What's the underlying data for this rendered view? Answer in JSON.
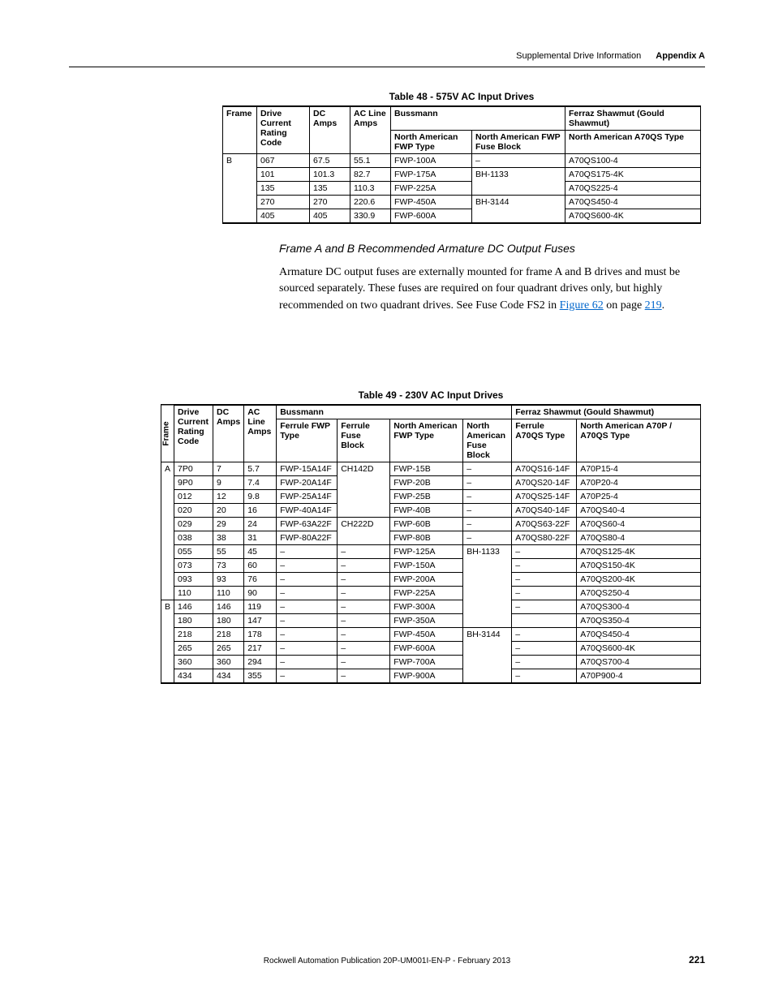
{
  "header": {
    "section": "Supplemental Drive Information",
    "appendix": "Appendix A"
  },
  "table48": {
    "caption": "Table 48 - 575V AC Input Drives",
    "headers": {
      "frame": "Frame",
      "driveCurrent": "Drive Current Rating Code",
      "dcAmps": "DC Amps",
      "acLine": "AC Line Amps",
      "bussmann": "Bussmann",
      "naFwpType": "North American FWP Type",
      "naFwpBlock": "North American FWP Fuse Block",
      "ferraz": "Ferraz Shawmut (Gould Shawmut)",
      "naA70qs": "North American A70QS Type"
    },
    "rows": [
      {
        "frame": "B",
        "code": "067",
        "dc": "67.5",
        "ac": "55.1",
        "fwpType": "FWP-100A",
        "fwpBlock": "–",
        "a70qs": "A70QS100-4"
      },
      {
        "frame": "",
        "code": "101",
        "dc": "101.3",
        "ac": "82.7",
        "fwpType": "FWP-175A",
        "fwpBlock": "BH-1133",
        "a70qs": "A70QS175-4K"
      },
      {
        "frame": "",
        "code": "135",
        "dc": "135",
        "ac": "110.3",
        "fwpType": "FWP-225A",
        "fwpBlock": "",
        "a70qs": "A70QS225-4"
      },
      {
        "frame": "",
        "code": "270",
        "dc": "270",
        "ac": "220.6",
        "fwpType": "FWP-450A",
        "fwpBlock": "BH-3144",
        "a70qs": "A70QS450-4"
      },
      {
        "frame": "",
        "code": "405",
        "dc": "405",
        "ac": "330.9",
        "fwpType": "FWP-600A",
        "fwpBlock": "",
        "a70qs": "A70QS600-4K"
      }
    ]
  },
  "subhead": "Frame A and B Recommended Armature DC Output Fuses",
  "paragraph": {
    "text1": "Armature DC output fuses are externally mounted for frame A and B drives and must be sourced separately. These fuses are required on four quadrant drives only, but highly recommended on two quadrant drives. See Fuse Code FS2 in ",
    "link1": "Figure 62",
    "text2": " on page ",
    "link2": "219",
    "text3": "."
  },
  "table49": {
    "caption": "Table 49 - 230V AC Input Drives",
    "headers": {
      "frame": "Frame",
      "driveCurrent": "Drive Current Rating Code",
      "dcAmps": "DC Amps",
      "acLine": "AC Line Amps",
      "bussmann": "Bussmann",
      "ferrFwpType": "Ferrule FWP Type",
      "ferrFuseBlock": "Ferrule Fuse Block",
      "naFwpType": "North American FWP Type",
      "naFuseBlock": "North American Fuse Block",
      "ferraz": "Ferraz Shawmut (Gould Shawmut)",
      "ferrA70qs": "Ferrule A70QS Type",
      "naA70p": "North American A70P / A70QS Type"
    },
    "rows": [
      {
        "frame": "A",
        "code": "7P0",
        "dc": "7",
        "ac": "5.7",
        "fFwp": "FWP-15A14F",
        "fBlock": "CH142D",
        "naFwp": "FWP-15B",
        "naBlock": "–",
        "fA70": "A70QS16-14F",
        "naA70": "A70P15-4"
      },
      {
        "frame": "",
        "code": "9P0",
        "dc": "9",
        "ac": "7.4",
        "fFwp": "FWP-20A14F",
        "fBlock": "",
        "naFwp": "FWP-20B",
        "naBlock": "–",
        "fA70": "A70QS20-14F",
        "naA70": "A70P20-4"
      },
      {
        "frame": "",
        "code": "012",
        "dc": "12",
        "ac": "9.8",
        "fFwp": "FWP-25A14F",
        "fBlock": "",
        "naFwp": "FWP-25B",
        "naBlock": "–",
        "fA70": "A70QS25-14F",
        "naA70": "A70P25-4"
      },
      {
        "frame": "",
        "code": "020",
        "dc": "20",
        "ac": "16",
        "fFwp": "FWP-40A14F",
        "fBlock": "",
        "naFwp": "FWP-40B",
        "naBlock": "–",
        "fA70": "A70QS40-14F",
        "naA70": "A70QS40-4"
      },
      {
        "frame": "",
        "code": "029",
        "dc": "29",
        "ac": "24",
        "fFwp": "FWP-63A22F",
        "fBlock": "CH222D",
        "naFwp": "FWP-60B",
        "naBlock": "–",
        "fA70": "A70QS63-22F",
        "naA70": "A70QS60-4"
      },
      {
        "frame": "",
        "code": "038",
        "dc": "38",
        "ac": "31",
        "fFwp": "FWP-80A22F",
        "fBlock": "",
        "naFwp": "FWP-80B",
        "naBlock": "–",
        "fA70": "A70QS80-22F",
        "naA70": "A70QS80-4"
      },
      {
        "frame": "",
        "code": "055",
        "dc": "55",
        "ac": "45",
        "fFwp": "–",
        "fBlock": "–",
        "naFwp": "FWP-125A",
        "naBlock": "BH-1133",
        "fA70": "–",
        "naA70": "A70QS125-4K"
      },
      {
        "frame": "",
        "code": "073",
        "dc": "73",
        "ac": "60",
        "fFwp": "–",
        "fBlock": "–",
        "naFwp": "FWP-150A",
        "naBlock": "",
        "fA70": "–",
        "naA70": "A70QS150-4K"
      },
      {
        "frame": "",
        "code": "093",
        "dc": "93",
        "ac": "76",
        "fFwp": "–",
        "fBlock": "–",
        "naFwp": "FWP-200A",
        "naBlock": "",
        "fA70": "–",
        "naA70": "A70QS200-4K"
      },
      {
        "frame": "",
        "code": "110",
        "dc": "110",
        "ac": "90",
        "fFwp": "–",
        "fBlock": "–",
        "naFwp": "FWP-225A",
        "naBlock": "",
        "fA70": "–",
        "naA70": "A70QS250-4"
      },
      {
        "frame": "B",
        "code": "146",
        "dc": "146",
        "ac": "119",
        "fFwp": "–",
        "fBlock": "–",
        "naFwp": "FWP-300A",
        "naBlock": "",
        "fA70": "–",
        "naA70": "A70QS300-4"
      },
      {
        "frame": "",
        "code": "180",
        "dc": "180",
        "ac": "147",
        "fFwp": "–",
        "fBlock": "–",
        "naFwp": "FWP-350A",
        "naBlock": "",
        "fA70": "",
        "naA70": "A70QS350-4"
      },
      {
        "frame": "",
        "code": "218",
        "dc": "218",
        "ac": "178",
        "fFwp": "–",
        "fBlock": "–",
        "naFwp": "FWP-450A",
        "naBlock": "BH-3144",
        "fA70": "–",
        "naA70": "A70QS450-4"
      },
      {
        "frame": "",
        "code": "265",
        "dc": "265",
        "ac": "217",
        "fFwp": "–",
        "fBlock": "–",
        "naFwp": "FWP-600A",
        "naBlock": "",
        "fA70": "–",
        "naA70": "A70QS600-4K"
      },
      {
        "frame": "",
        "code": "360",
        "dc": "360",
        "ac": "294",
        "fFwp": "–",
        "fBlock": "–",
        "naFwp": "FWP-700A",
        "naBlock": "",
        "fA70": "–",
        "naA70": "A70QS700-4"
      },
      {
        "frame": "",
        "code": "434",
        "dc": "434",
        "ac": "355",
        "fFwp": "–",
        "fBlock": "–",
        "naFwp": "FWP-900A",
        "naBlock": "",
        "fA70": "–",
        "naA70": "A70P900-4"
      }
    ]
  },
  "footer": {
    "publication": "Rockwell Automation Publication 20P-UM001I-EN-P - February 2013",
    "pageNum": "221"
  }
}
